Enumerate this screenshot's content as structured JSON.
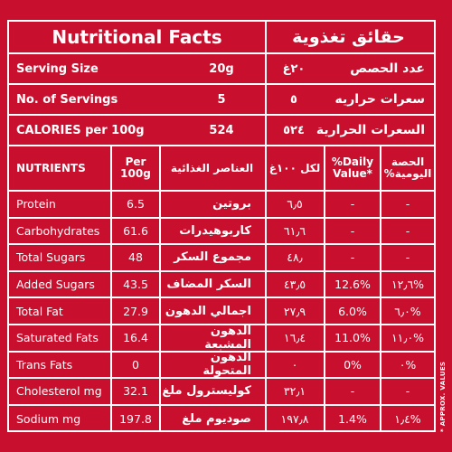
{
  "title": {
    "en": "Nutritional Facts",
    "ar": "حقائق تغذوية"
  },
  "summary": [
    {
      "en_label": "Serving Size",
      "en_value": "20g",
      "ar_label": "عدد الحصص",
      "ar_value": "٢٠غ"
    },
    {
      "en_label": "No. of Servings",
      "en_value": "5",
      "ar_label": "سعرات حراريه",
      "ar_value": "٥"
    },
    {
      "en_label": "CALORIES per 100g",
      "en_value": "524",
      "ar_label": "السعرات الحرارية",
      "ar_value": "٥٢٤"
    }
  ],
  "headers": {
    "nutrients": "NUTRIENTS",
    "per_100g_line1": "Per",
    "per_100g_line2": "100g",
    "nutrients_ar": "العناصر الغذائية",
    "per_100g_ar": "لكل ١٠٠غ",
    "daily_value_line1": "%Daily",
    "daily_value_line2": "Value*",
    "daily_value_ar_line1": "الحصة",
    "daily_value_ar_line2": "اليومية%"
  },
  "nutrients": [
    {
      "en": "Protein",
      "per100": "6.5",
      "ar": "بروتين",
      "per100_ar": "٦٫٥",
      "dv": "-",
      "dv_ar": "-"
    },
    {
      "en": "Carbohydrates",
      "per100": "61.6",
      "ar": "كاربوهيدرات",
      "per100_ar": "٦١٫٦",
      "dv": "-",
      "dv_ar": "-"
    },
    {
      "en": "Total Sugars",
      "per100": "48",
      "ar": "مجموع السكر",
      "per100_ar": "٤٨٫",
      "dv": "-",
      "dv_ar": "-"
    },
    {
      "en": "Added Sugars",
      "per100": "43.5",
      "ar": "السكر المضاف",
      "per100_ar": "٤٣٫٥",
      "dv": "12.6%",
      "dv_ar": "١٢٫٦%"
    },
    {
      "en": "Total Fat",
      "per100": "27.9",
      "ar": "اجمالي الدهون",
      "per100_ar": "٢٧٫٩",
      "dv": "6.0%",
      "dv_ar": "٦٫٠%"
    },
    {
      "en": "Saturated Fats",
      "per100": "16.4",
      "ar": "الدهون المشبعة",
      "per100_ar": "١٦٫٤",
      "dv": "11.0%",
      "dv_ar": "١١٫٠%"
    },
    {
      "en": "Trans Fats",
      "per100": "0",
      "ar": "الدهون المتحولة",
      "per100_ar": "٠",
      "dv": "0%",
      "dv_ar": "٠%"
    },
    {
      "en": "Cholesterol mg",
      "per100": "32.1",
      "ar": "كوليسترول ملغ",
      "per100_ar": "٣٢٫١",
      "dv": "-",
      "dv_ar": "-"
    },
    {
      "en": "Sodium mg",
      "per100": "197.8",
      "ar": "صوديوم ملغ",
      "per100_ar": "١٩٧٫٨",
      "dv": "1.4%",
      "dv_ar": "١٫٤%"
    }
  ],
  "side_note": "* APPROX. VALUES"
}
